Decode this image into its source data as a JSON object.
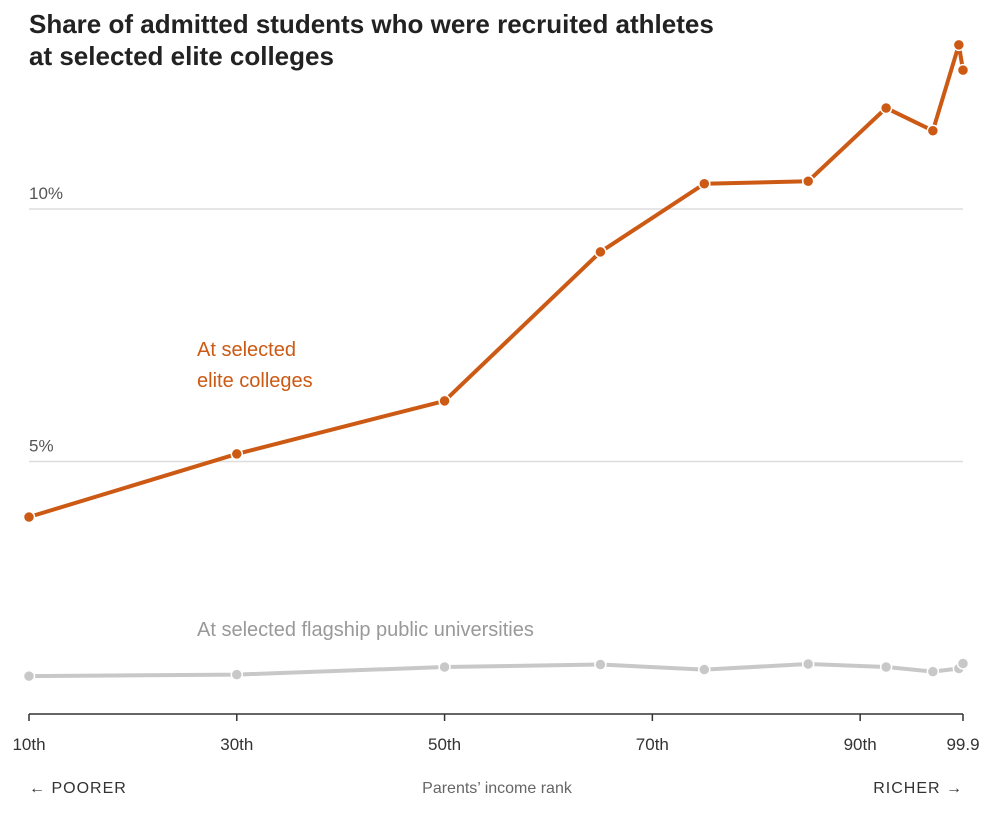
{
  "chart_data": {
    "type": "line",
    "title": "Share of admitted students who were recruited athletes at selected elite colleges",
    "xlabel": "Parents’ income rank",
    "x_left_label": "← POORER",
    "x_right_label": "RICHER →",
    "xlim": [
      10,
      99.9
    ],
    "ylim": [
      0,
      14
    ],
    "x_ticks": [
      {
        "value": 10,
        "label": "10th"
      },
      {
        "value": 30,
        "label": "30th"
      },
      {
        "value": 50,
        "label": "50th"
      },
      {
        "value": 70,
        "label": "70th"
      },
      {
        "value": 90,
        "label": "90th"
      },
      {
        "value": 99.9,
        "label": "99.9"
      }
    ],
    "y_gridlines": [
      {
        "value": 5,
        "label": "5%"
      },
      {
        "value": 10,
        "label": "10%"
      }
    ],
    "series": [
      {
        "name": "At selected\nelite colleges",
        "label_lines": [
          "At selected",
          "elite colleges"
        ],
        "color": "#cc5a14",
        "x": [
          10,
          30,
          50,
          65,
          75,
          85,
          92.5,
          97,
          99.5,
          99.9
        ],
        "y": [
          3.9,
          5.15,
          6.2,
          9.15,
          10.5,
          10.55,
          12.0,
          11.55,
          13.25,
          12.75
        ]
      },
      {
        "name": "At selected flagship public universities",
        "label_lines": [
          "At selected flagship public universities"
        ],
        "color": "#c8c8c8",
        "x": [
          10,
          30,
          50,
          65,
          75,
          85,
          92.5,
          97,
          99.5,
          99.9
        ],
        "y": [
          0.75,
          0.78,
          0.93,
          0.98,
          0.88,
          0.99,
          0.93,
          0.84,
          0.9,
          1.0
        ]
      }
    ]
  }
}
